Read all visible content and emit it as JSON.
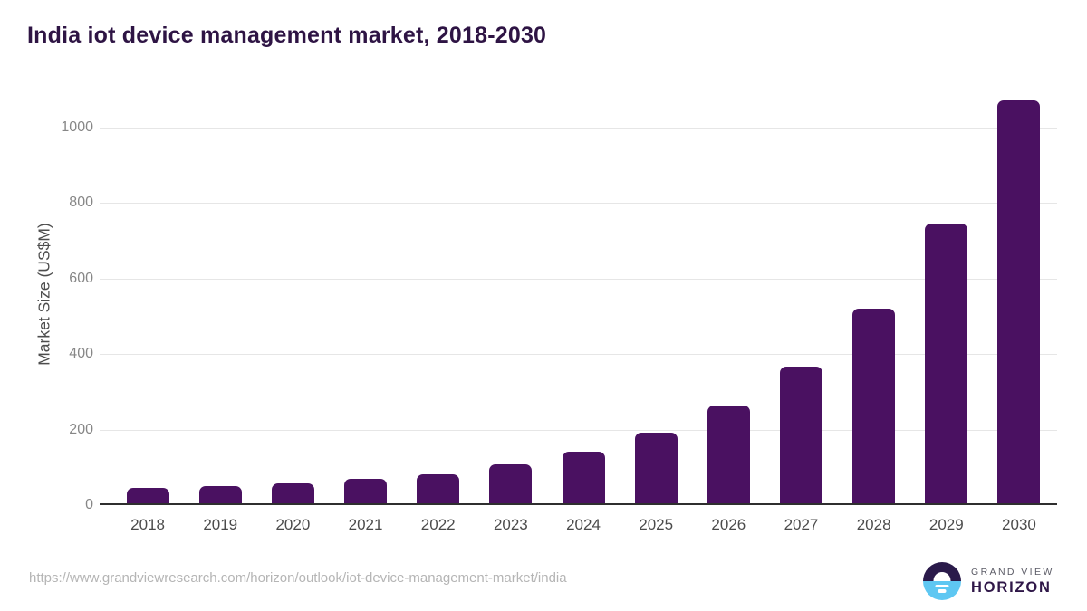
{
  "chart": {
    "title": "India iot device management market, 2018-2030",
    "ylabel": "Market Size (US$M)"
  },
  "chart_data": {
    "type": "bar",
    "title": "India iot device management market, 2018-2030",
    "xlabel": "",
    "ylabel": "Market Size (US$M)",
    "categories": [
      "2018",
      "2019",
      "2020",
      "2021",
      "2022",
      "2023",
      "2024",
      "2025",
      "2026",
      "2027",
      "2028",
      "2029",
      "2030"
    ],
    "values": [
      41,
      46,
      53,
      64,
      77,
      104,
      137,
      186,
      258,
      363,
      515,
      740,
      1066
    ],
    "yticks": [
      0,
      200,
      400,
      600,
      800,
      1000
    ],
    "ylim": [
      0,
      1100
    ],
    "grid": "horizontal-only",
    "legend": "none",
    "bar_color": "#4a1161"
  },
  "colors": {
    "bar": "#4a1161",
    "title_text": "#2e1444",
    "gridline": "#e6e6e6",
    "axis_line": "#2f2f2f",
    "logo_dark_purple": "#2a1a4a",
    "logo_light_blue": "#5ec7f2"
  },
  "footer": {
    "source_url": "https://www.grandviewresearch.com/horizon/outlook/iot-device-management-market/india",
    "brand_top": "GRAND VIEW",
    "brand_bottom": "HORIZON"
  }
}
